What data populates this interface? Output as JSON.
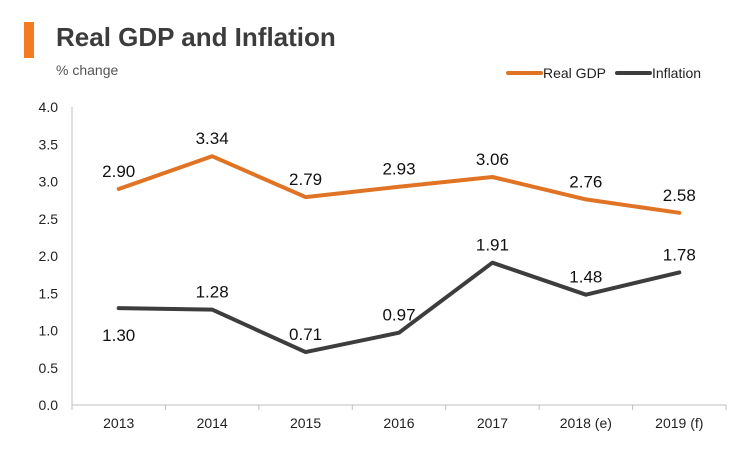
{
  "colors": {
    "accent": "#f47b20",
    "real_gdp": "#e07424",
    "inflation": "#3d3d3d",
    "axis": "#bfbfbf",
    "text": "#222222"
  },
  "chart_data": {
    "type": "line",
    "title": "Real GDP and Inflation",
    "subtitle": "% change",
    "categories": [
      "2013",
      "2014",
      "2015",
      "2016",
      "2017",
      "2018 (e)",
      "2019 (f)"
    ],
    "series": [
      {
        "name": "Real GDP",
        "color": "#e07424",
        "values": [
          2.9,
          3.34,
          2.79,
          2.93,
          3.06,
          2.76,
          2.58
        ],
        "labels": [
          "2.90",
          "3.34",
          "2.79",
          "2.93",
          "3.06",
          "2.76",
          "2.58"
        ],
        "label_positions": [
          "above",
          "above",
          "above",
          "above",
          "above",
          "above",
          "above"
        ]
      },
      {
        "name": "Inflation",
        "color": "#3d3d3d",
        "values": [
          1.3,
          1.28,
          0.71,
          0.97,
          1.91,
          1.48,
          1.78
        ],
        "labels": [
          "1.30",
          "1.28",
          "0.71",
          "0.97",
          "1.91",
          "1.48",
          "1.78"
        ],
        "label_positions": [
          "below",
          "above",
          "above",
          "above",
          "above",
          "above",
          "above"
        ]
      }
    ],
    "yticks": [
      "0.0",
      "0.5",
      "1.0",
      "1.5",
      "2.0",
      "2.5",
      "3.0",
      "3.5",
      "4.0"
    ],
    "ylim": [
      0,
      4.0
    ],
    "xlabel": "",
    "ylabel": "",
    "grid": false,
    "legend": "top-right"
  }
}
